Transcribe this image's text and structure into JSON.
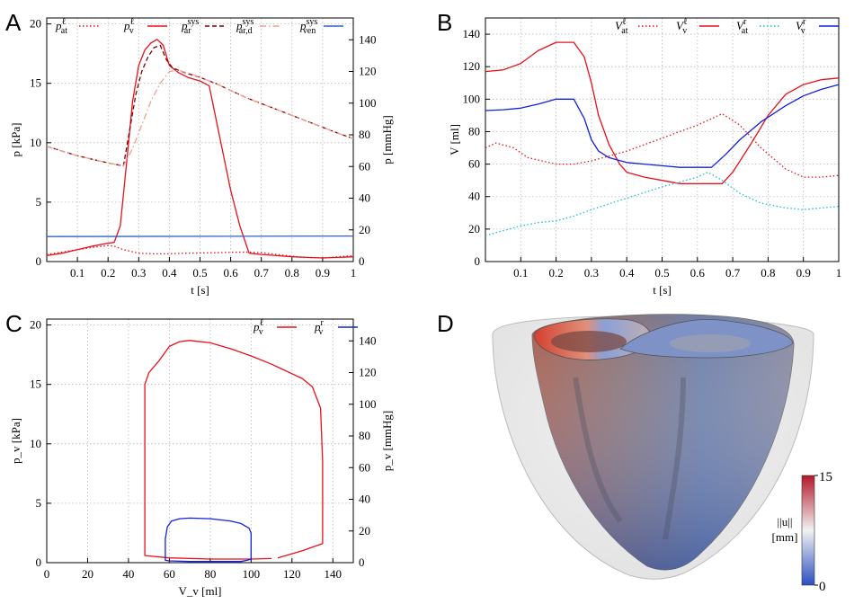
{
  "panel_letters": [
    "A",
    "B",
    "C",
    "D"
  ],
  "colors": {
    "red": "#e8101a",
    "darkred": "#7a0000",
    "salmon": "#f0a090",
    "blue": "#3060c8",
    "pureblue": "#1020e0",
    "cyan": "#10c0d0"
  },
  "chart_data": [
    {
      "id": "A",
      "type": "line",
      "xlabel": "t [s]",
      "ylabel": "p [kPa]",
      "ylabel2": "p [mmHg]",
      "xlim": [
        0,
        1
      ],
      "ylim": [
        0,
        20.5
      ],
      "ylim2_mmHg": [
        0,
        153.8
      ],
      "xticks": [
        "0.1",
        "0.2",
        "0.3",
        "0.4",
        "0.5",
        "0.6",
        "0.7",
        "0.8",
        "0.9",
        "1"
      ],
      "yticks": [
        "0",
        "5",
        "10",
        "15",
        "20"
      ],
      "yticks2": [
        "0",
        "20",
        "40",
        "60",
        "80",
        "100",
        "120",
        "140"
      ],
      "grid": true,
      "legend_position": "top",
      "legend": [
        "p_at^ℓ",
        "p_v^ℓ",
        "p_ar^sys",
        "p_ar,d^sys",
        "p_ven^sys"
      ],
      "series": [
        {
          "name": "p_at^ℓ",
          "color": "red",
          "dash": "dotted",
          "x": [
            0,
            0.05,
            0.1,
            0.15,
            0.2,
            0.22,
            0.25,
            0.3,
            0.35,
            0.4,
            0.45,
            0.5,
            0.55,
            0.6,
            0.65,
            0.7,
            0.75,
            0.8,
            0.85,
            0.9,
            0.95,
            1
          ],
          "y": [
            0.6,
            0.8,
            1.0,
            1.2,
            1.35,
            1.3,
            1.0,
            0.7,
            0.65,
            0.65,
            0.7,
            0.72,
            0.74,
            0.78,
            0.8,
            0.75,
            0.6,
            0.45,
            0.35,
            0.3,
            0.4,
            0.5
          ]
        },
        {
          "name": "p_v^ℓ",
          "color": "red",
          "dash": "solid",
          "x": [
            0,
            0.05,
            0.1,
            0.15,
            0.2,
            0.22,
            0.24,
            0.26,
            0.28,
            0.3,
            0.32,
            0.34,
            0.36,
            0.38,
            0.4,
            0.43,
            0.46,
            0.5,
            0.53,
            0.56,
            0.6,
            0.63,
            0.66,
            0.7,
            0.75,
            0.8,
            0.85,
            0.9,
            0.95,
            1
          ],
          "y": [
            0.5,
            0.7,
            1.0,
            1.3,
            1.55,
            1.6,
            3.0,
            8.2,
            13.5,
            16.5,
            17.8,
            18.4,
            18.7,
            18.2,
            16.5,
            15.9,
            15.5,
            15.2,
            14.8,
            11.0,
            6.0,
            3.0,
            0.7,
            0.6,
            0.5,
            0.4,
            0.35,
            0.3,
            0.35,
            0.4
          ]
        },
        {
          "name": "p_ar^sys",
          "color": "darkred",
          "dash": "dashed",
          "x": [
            0,
            0.05,
            0.1,
            0.15,
            0.2,
            0.25,
            0.27,
            0.29,
            0.31,
            0.33,
            0.35,
            0.37,
            0.39,
            0.41,
            0.45,
            0.5,
            0.55,
            0.6,
            0.65,
            0.7,
            0.75,
            0.8,
            0.85,
            0.9,
            0.95,
            1
          ],
          "y": [
            9.7,
            9.3,
            8.9,
            8.6,
            8.3,
            8.05,
            11.0,
            14.0,
            16.0,
            17.2,
            18.0,
            18.2,
            17.0,
            16.3,
            15.9,
            15.5,
            15.0,
            14.4,
            13.8,
            13.3,
            12.8,
            12.3,
            11.8,
            11.3,
            10.8,
            10.35
          ]
        },
        {
          "name": "p_ar,d^sys",
          "color": "salmon",
          "dash": "dashdot",
          "x": [
            0,
            0.05,
            0.1,
            0.15,
            0.2,
            0.25,
            0.28,
            0.31,
            0.34,
            0.37,
            0.4,
            0.43,
            0.47,
            0.5,
            0.55,
            0.6,
            0.65,
            0.7,
            0.75,
            0.8,
            0.85,
            0.9,
            0.95,
            1
          ],
          "y": [
            9.7,
            9.3,
            8.9,
            8.6,
            8.3,
            8.05,
            9.5,
            11.5,
            13.5,
            15.0,
            16.0,
            16.1,
            15.8,
            15.5,
            15.0,
            14.4,
            13.8,
            13.3,
            12.8,
            12.3,
            11.8,
            11.3,
            10.8,
            10.35
          ]
        },
        {
          "name": "p_ven^sys",
          "color": "blue",
          "dash": "solid",
          "x": [
            0,
            1
          ],
          "y": [
            2.1,
            2.15
          ]
        }
      ]
    },
    {
      "id": "B",
      "type": "line",
      "xlabel": "t [s]",
      "ylabel": "V [ml]",
      "xlim": [
        0,
        1
      ],
      "ylim": [
        0,
        150
      ],
      "xticks": [
        "0.1",
        "0.2",
        "0.3",
        "0.4",
        "0.5",
        "0.6",
        "0.7",
        "0.8",
        "0.9",
        "1"
      ],
      "yticks": [
        "0",
        "20",
        "40",
        "60",
        "80",
        "100",
        "120",
        "140"
      ],
      "grid": true,
      "legend_position": "top",
      "legend": [
        "V_at^ℓ",
        "V_v^ℓ",
        "V_at^r",
        "V_v^r"
      ],
      "series": [
        {
          "name": "V_at^ℓ",
          "color": "red",
          "dash": "dotted",
          "x": [
            0,
            0.03,
            0.08,
            0.12,
            0.2,
            0.25,
            0.3,
            0.4,
            0.5,
            0.6,
            0.67,
            0.72,
            0.78,
            0.85,
            0.9,
            0.95,
            1
          ],
          "y": [
            70,
            73,
            70,
            64,
            60,
            60,
            62,
            68,
            76,
            84,
            91,
            84,
            70,
            57,
            52,
            52,
            53
          ]
        },
        {
          "name": "V_v^ℓ",
          "color": "red",
          "dash": "solid",
          "x": [
            0,
            0.05,
            0.1,
            0.15,
            0.2,
            0.22,
            0.25,
            0.28,
            0.3,
            0.32,
            0.35,
            0.38,
            0.4,
            0.45,
            0.5,
            0.55,
            0.6,
            0.65,
            0.67,
            0.7,
            0.75,
            0.8,
            0.85,
            0.9,
            0.95,
            1
          ],
          "y": [
            117,
            118,
            122,
            130,
            135,
            135,
            135,
            126,
            110,
            90,
            72,
            60,
            55,
            52,
            50,
            48,
            48,
            48,
            48,
            55,
            72,
            90,
            103,
            109,
            112,
            113
          ]
        },
        {
          "name": "V_at^r",
          "color": "cyan",
          "dash": "dotted",
          "x": [
            0,
            0.05,
            0.1,
            0.15,
            0.2,
            0.25,
            0.3,
            0.4,
            0.5,
            0.6,
            0.63,
            0.67,
            0.72,
            0.78,
            0.85,
            0.9,
            0.95,
            1
          ],
          "y": [
            16,
            19,
            22,
            24,
            25,
            28,
            32,
            39,
            46,
            52,
            55,
            50,
            42,
            36,
            33,
            32,
            33,
            34
          ]
        },
        {
          "name": "V_v^r",
          "color": "pureblue",
          "dash": "solid",
          "x": [
            0,
            0.05,
            0.1,
            0.15,
            0.2,
            0.25,
            0.28,
            0.3,
            0.32,
            0.35,
            0.4,
            0.45,
            0.5,
            0.55,
            0.6,
            0.64,
            0.68,
            0.72,
            0.78,
            0.85,
            0.9,
            0.95,
            1
          ],
          "y": [
            93,
            93.5,
            94.5,
            97,
            100,
            100,
            88,
            75,
            68,
            64,
            61,
            60,
            59,
            58,
            58,
            58,
            66,
            75,
            86,
            96,
            102,
            106,
            109
          ]
        }
      ]
    },
    {
      "id": "C",
      "type": "line",
      "xlabel": "V_v [ml]",
      "ylabel": "p_v [kPa]",
      "ylabel2": "p_v [mmHg]",
      "xlim": [
        0,
        150
      ],
      "ylim": [
        0,
        20.5
      ],
      "ylim2_mmHg": [
        0,
        153.8
      ],
      "xticks": [
        "0",
        "20",
        "40",
        "60",
        "80",
        "100",
        "120",
        "140"
      ],
      "yticks": [
        "0",
        "5",
        "10",
        "15",
        "20"
      ],
      "yticks2": [
        "0",
        "20",
        "40",
        "60",
        "80",
        "100",
        "120",
        "140"
      ],
      "grid": true,
      "legend_position": "top-right",
      "legend": [
        "p_v^ℓ",
        "p_v^r"
      ],
      "series": [
        {
          "name": "p_v^ℓ",
          "color": "red",
          "dash": "solid",
          "x": [
            113,
            117,
            125,
            135,
            135,
            134,
            130,
            125,
            120,
            115,
            110,
            100,
            90,
            80,
            70,
            65,
            60,
            55,
            50,
            48,
            48,
            48,
            60,
            80,
            100,
            110
          ],
          "y": [
            0.4,
            0.6,
            1.0,
            1.6,
            8.5,
            13.0,
            14.8,
            15.5,
            15.9,
            16.3,
            16.7,
            17.4,
            18.0,
            18.5,
            18.7,
            18.6,
            18.2,
            17.0,
            16.0,
            15.0,
            5.0,
            0.6,
            0.4,
            0.3,
            0.3,
            0.35
          ]
        },
        {
          "name": "p_v^r",
          "color": "pureblue",
          "dash": "solid",
          "x": [
            100,
            100,
            99,
            95,
            90,
            80,
            70,
            65,
            61,
            59,
            58,
            58,
            58,
            60,
            70,
            80,
            90,
            95,
            98,
            100
          ],
          "y": [
            0.2,
            2.5,
            2.9,
            3.3,
            3.5,
            3.7,
            3.75,
            3.7,
            3.5,
            3.0,
            2.0,
            0.5,
            0.2,
            0.15,
            0.1,
            0.1,
            0.1,
            0.1,
            0.2,
            0.3
          ]
        }
      ]
    }
  ],
  "panel_D": {
    "colorbar": {
      "label_line1": "||u||",
      "label_line2": "[mm]",
      "max_label": "15",
      "min_label": "0",
      "max_color": "#b2182b",
      "mid_color": "#f2f2f2",
      "min_color": "#2b4fc0"
    }
  }
}
